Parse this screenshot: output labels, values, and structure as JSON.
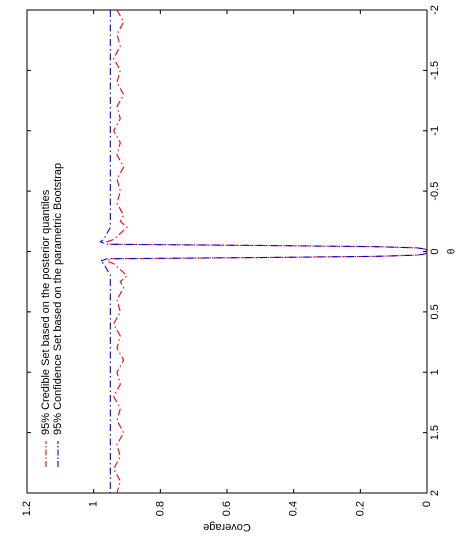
{
  "chart_data": {
    "type": "line",
    "orientation": "rotated-90-ccw",
    "title": "",
    "xlabel": "θ",
    "ylabel": "Coverage",
    "xlim": [
      -2,
      2
    ],
    "ylim": [
      0,
      1.2
    ],
    "x_ticks": [
      -2,
      -1.5,
      -1,
      -0.5,
      0,
      0.5,
      1,
      1.5,
      2
    ],
    "x_tick_labels": [
      "-2",
      "-1.5",
      "-1",
      "-0.5",
      "0",
      "0.5",
      "1",
      "1.5",
      "2"
    ],
    "y_ticks": [
      0,
      0.2,
      0.4,
      0.6,
      0.8,
      1,
      1.2
    ],
    "y_tick_labels": [
      "0",
      "0.2",
      "0.4",
      "0.6",
      "0.8",
      "1",
      "1.2"
    ],
    "grid": false,
    "legend_position": "top-left",
    "series": [
      {
        "name": "95% Credible Set based on the posterior quantiles",
        "color": "#ff0000",
        "style": "dash-dot",
        "x": [
          -2.0,
          -1.9,
          -1.8,
          -1.7,
          -1.6,
          -1.5,
          -1.4,
          -1.3,
          -1.2,
          -1.1,
          -1.0,
          -0.9,
          -0.8,
          -0.7,
          -0.6,
          -0.5,
          -0.4,
          -0.3,
          -0.25,
          -0.2,
          -0.15,
          -0.1,
          -0.08,
          -0.06,
          -0.05,
          -0.04,
          -0.03,
          -0.02,
          -0.01,
          0.0,
          0.01,
          0.02,
          0.03,
          0.04,
          0.05,
          0.06,
          0.08,
          0.1,
          0.15,
          0.2,
          0.25,
          0.3,
          0.4,
          0.5,
          0.6,
          0.7,
          0.8,
          0.9,
          1.0,
          1.1,
          1.2,
          1.3,
          1.4,
          1.5,
          1.6,
          1.7,
          1.8,
          1.9,
          2.0
        ],
        "y": [
          0.93,
          0.91,
          0.93,
          0.92,
          0.94,
          0.92,
          0.93,
          0.91,
          0.93,
          0.92,
          0.94,
          0.92,
          0.93,
          0.91,
          0.93,
          0.92,
          0.93,
          0.91,
          0.92,
          0.9,
          0.92,
          0.94,
          0.96,
          0.95,
          0.5,
          0.15,
          0.03,
          0.005,
          0.002,
          0.0,
          0.002,
          0.005,
          0.03,
          0.15,
          0.5,
          0.95,
          0.96,
          0.94,
          0.92,
          0.9,
          0.92,
          0.91,
          0.93,
          0.92,
          0.94,
          0.92,
          0.93,
          0.91,
          0.93,
          0.92,
          0.94,
          0.92,
          0.93,
          0.91,
          0.93,
          0.92,
          0.94,
          0.92,
          0.93
        ]
      },
      {
        "name": "95% Confidence Set based on the parametric Bootstrap",
        "color": "#0000ff",
        "style": "dash-dot",
        "x": [
          -2.0,
          -1.0,
          -0.3,
          -0.2,
          -0.15,
          -0.1,
          -0.08,
          -0.06,
          -0.05,
          -0.04,
          -0.03,
          -0.02,
          -0.01,
          0.0,
          0.01,
          0.02,
          0.03,
          0.04,
          0.05,
          0.06,
          0.08,
          0.1,
          0.15,
          0.2,
          0.3,
          1.0,
          2.0
        ],
        "y": [
          0.95,
          0.95,
          0.95,
          0.95,
          0.96,
          0.97,
          0.98,
          0.96,
          0.5,
          0.15,
          0.03,
          0.005,
          0.002,
          0.0,
          0.002,
          0.005,
          0.03,
          0.15,
          0.5,
          0.96,
          0.98,
          0.97,
          0.96,
          0.95,
          0.95,
          0.95,
          0.95
        ]
      }
    ]
  }
}
